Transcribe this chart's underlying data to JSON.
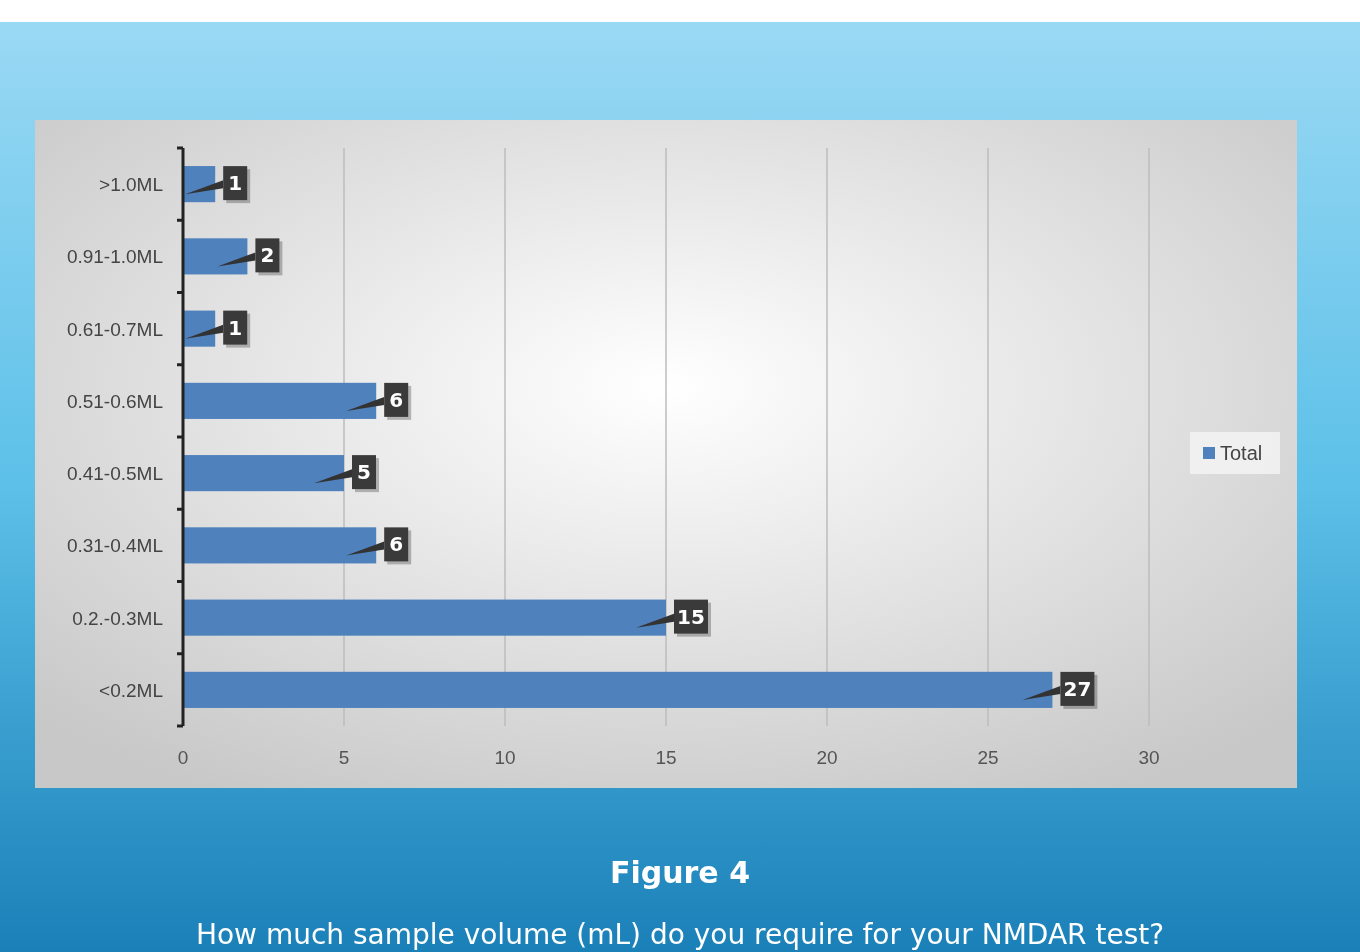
{
  "chart_data": {
    "type": "bar",
    "orientation": "horizontal",
    "title": "Figure 4",
    "subtitle": "How much sample volume (mL) do you require for your NMDAR test?",
    "categories": [
      ">1.0ML",
      "0.91-1.0ML",
      "0.61-0.7ML",
      "0.51-0.6ML",
      "0.41-0.5ML",
      "0.31-0.4ML",
      "0.2.-0.3ML",
      "<0.2ML"
    ],
    "series": [
      {
        "name": "Total",
        "color": "#4f81bd",
        "values": [
          1,
          2,
          1,
          6,
          5,
          6,
          15,
          27
        ]
      }
    ],
    "xlim": [
      0,
      30
    ],
    "xticks": [
      0,
      5,
      10,
      15,
      20,
      25,
      30
    ],
    "grid": "x",
    "legend": "right",
    "data_labels": true
  }
}
